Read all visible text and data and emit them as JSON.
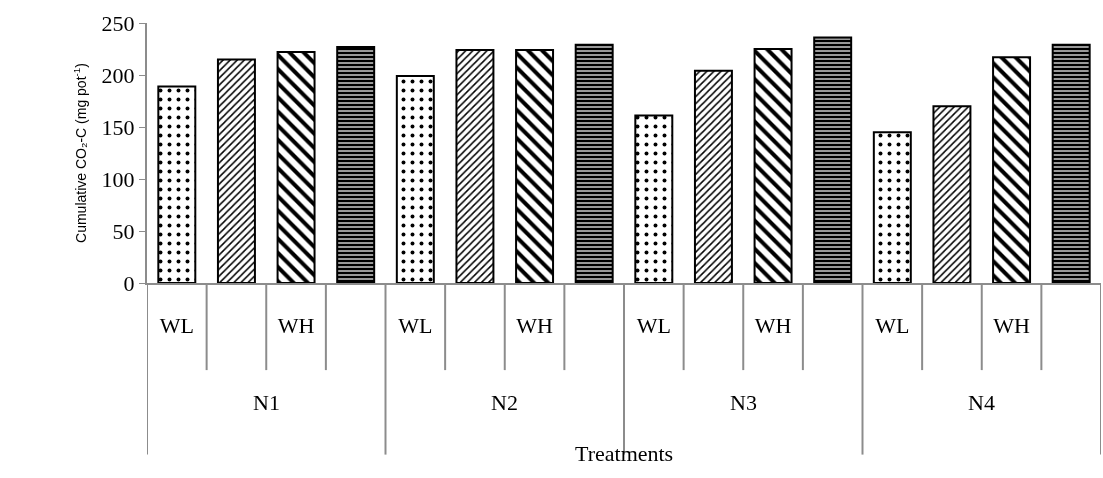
{
  "chart_data": {
    "type": "bar",
    "xlabel": "Treatments",
    "ylabel": "Cumulative CO₂-C (mg pot$^{-1}$)",
    "categories": [
      "WL",
      null,
      "WH",
      null,
      "WL",
      null,
      "WH",
      null,
      "WL",
      null,
      "WH",
      null,
      "WL",
      null,
      "WH",
      null
    ],
    "values": [
      189,
      215,
      222,
      227,
      199,
      224,
      224,
      229,
      161,
      204,
      225,
      236,
      145,
      170,
      217,
      229
    ],
    "color": "#000000",
    "annotations": [
      "N1",
      "N2",
      "N3",
      "N4"
    ],
    "ylim": [
      0,
      250
    ],
    "yticks": [
      0,
      50,
      100,
      150,
      200,
      250
    ],
    "grid": false
  }
}
